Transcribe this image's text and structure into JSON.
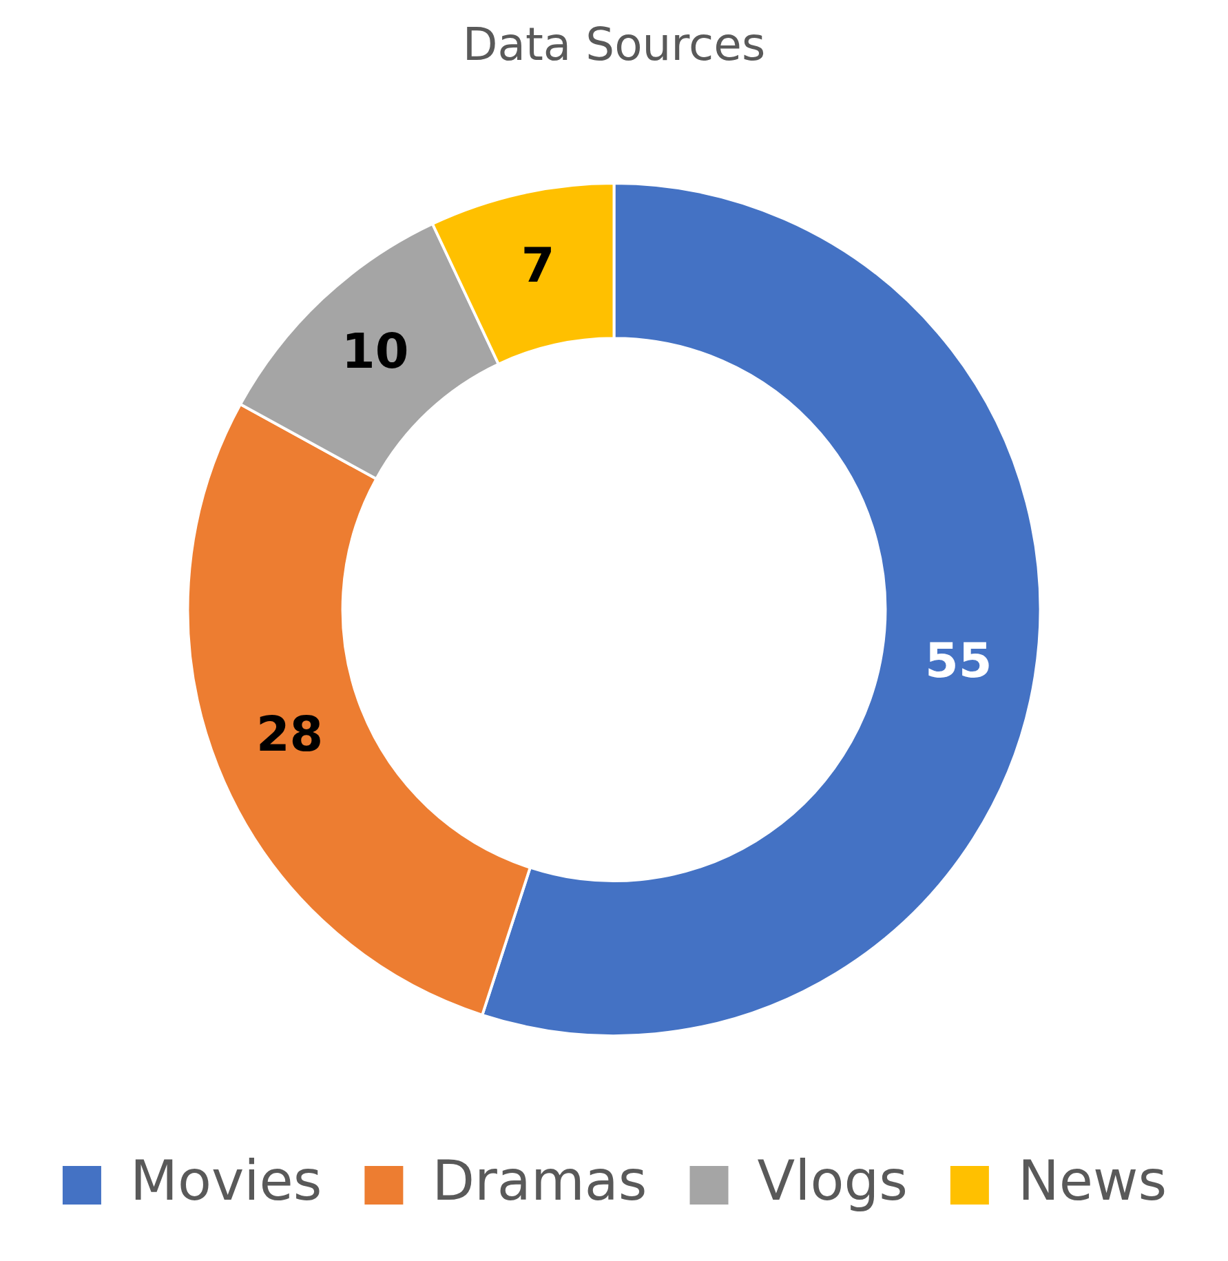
{
  "chart_data": {
    "type": "donut",
    "title": "Data Sources",
    "categories": [
      "Movies",
      "Dramas",
      "Vlogs",
      "News"
    ],
    "values": [
      55,
      28,
      10,
      7
    ],
    "colors": [
      "#4472c4",
      "#ed7d31",
      "#a5a5a5",
      "#ffc000"
    ],
    "data_labels": true,
    "legend": "bottom"
  }
}
